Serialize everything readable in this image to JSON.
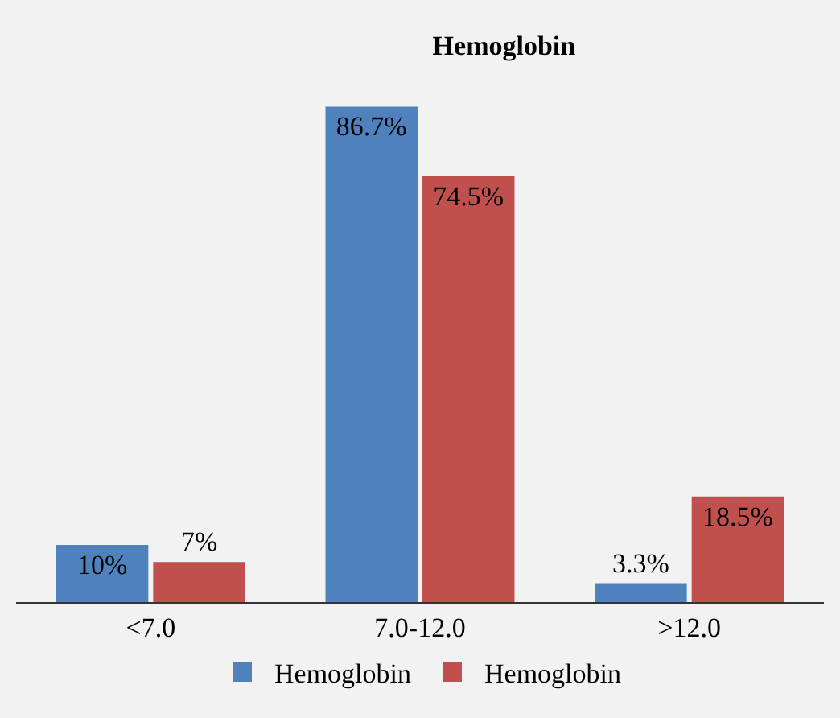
{
  "chart_data": {
    "type": "bar",
    "title": "Hemoglobin",
    "categories": [
      "<7.0",
      "7.0-12.0",
      ">12.0"
    ],
    "series": [
      {
        "name": "Hemoglobin",
        "color": "#4f81bd",
        "values": [
          10,
          86.7,
          3.3
        ],
        "value_labels": [
          "10%",
          "86.7%",
          "3.3%"
        ]
      },
      {
        "name": "Hemoglobin",
        "color": "#c0504d",
        "values": [
          7,
          74.5,
          18.5
        ],
        "value_labels": [
          "7%",
          "74.5%",
          "18.5%"
        ]
      }
    ],
    "legend": "bottom",
    "grid": false
  }
}
